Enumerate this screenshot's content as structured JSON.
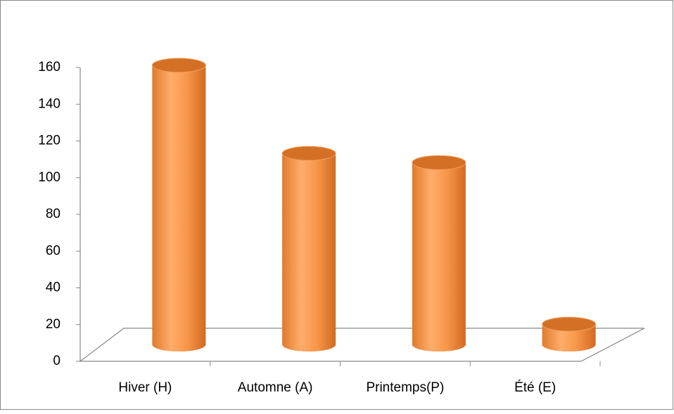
{
  "chart_data": {
    "type": "bar",
    "categories": [
      "Hiver (H)",
      "Automne (A)",
      "Printemps(P)",
      "Été (E)"
    ],
    "values": [
      152,
      104,
      99,
      11
    ],
    "color": "#f79646",
    "ylim": [
      0,
      160
    ],
    "yticks": [
      0,
      20,
      40,
      60,
      80,
      100,
      120,
      140,
      160
    ],
    "grid": false
  }
}
